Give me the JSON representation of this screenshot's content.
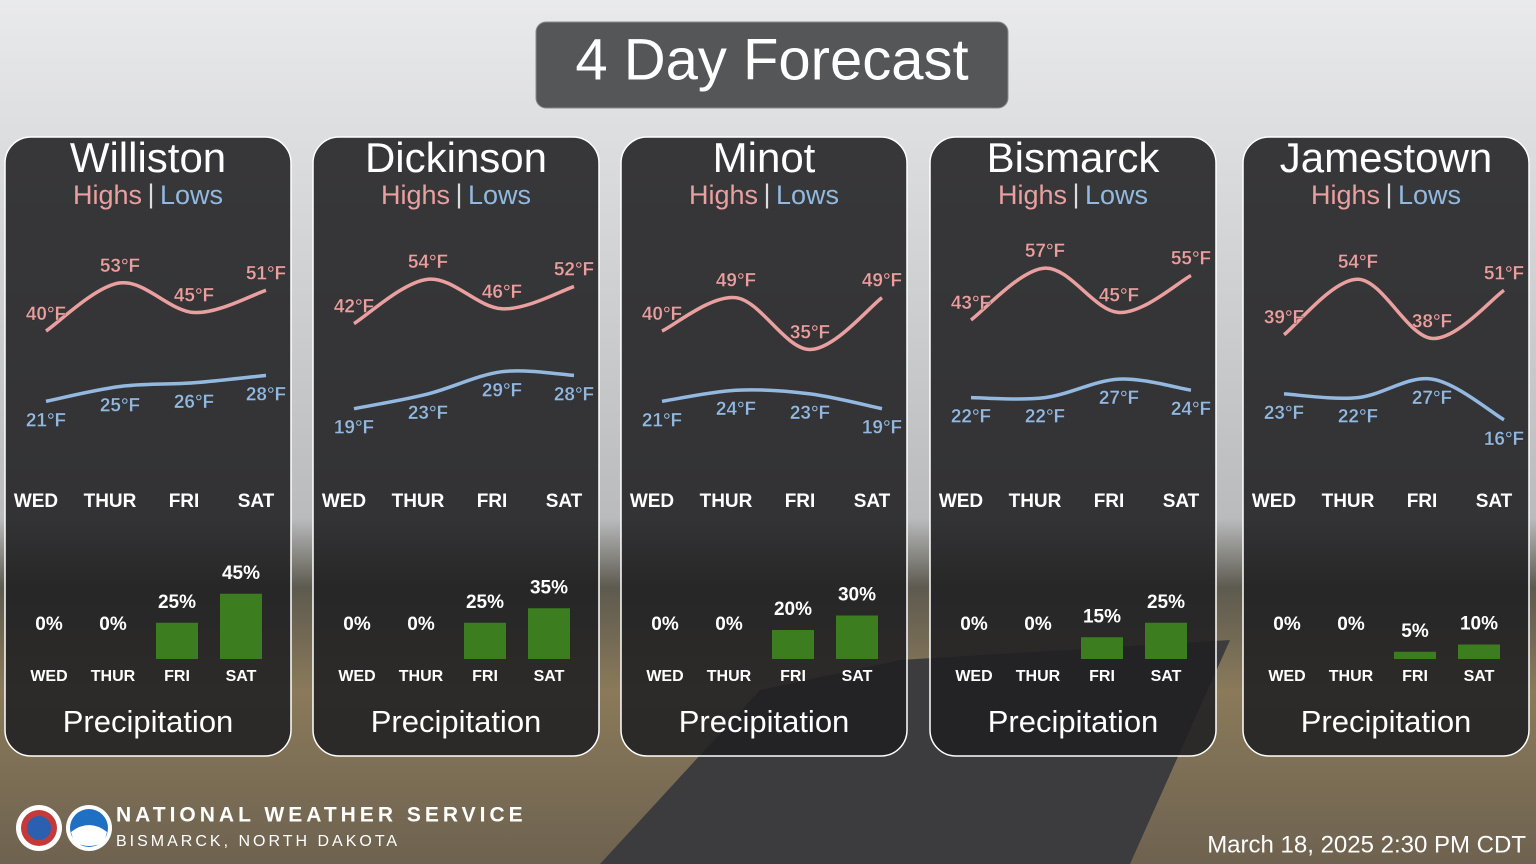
{
  "title": "4 Day Forecast",
  "days": [
    "WED",
    "THUR",
    "FRI",
    "SAT"
  ],
  "highs_label": "Highs",
  "separator": "|",
  "lows_label": "Lows",
  "precip_label": "Precipitation",
  "panels": [
    {
      "city": "Williston",
      "highs": {
        "values": [
          40,
          53,
          45,
          51
        ],
        "value_labels": [
          "40°F",
          "53°F",
          "45°F",
          "51°F"
        ]
      },
      "lows": {
        "values": [
          21,
          25,
          26,
          28
        ],
        "value_labels": [
          "21°F",
          "25°F",
          "26°F",
          "28°F"
        ]
      },
      "precip": {
        "values": [
          0,
          0,
          25,
          45
        ],
        "value_labels": [
          "0%",
          "0%",
          "25%",
          "45%"
        ]
      }
    },
    {
      "city": "Dickinson",
      "highs": {
        "values": [
          42,
          54,
          46,
          52
        ],
        "value_labels": [
          "42°F",
          "54°F",
          "46°F",
          "52°F"
        ]
      },
      "lows": {
        "values": [
          19,
          23,
          29,
          28
        ],
        "value_labels": [
          "19°F",
          "23°F",
          "29°F",
          "28°F"
        ]
      },
      "precip": {
        "values": [
          0,
          0,
          25,
          35
        ],
        "value_labels": [
          "0%",
          "0%",
          "25%",
          "35%"
        ]
      }
    },
    {
      "city": "Minot",
      "highs": {
        "values": [
          40,
          49,
          35,
          49
        ],
        "value_labels": [
          "40°F",
          "49°F",
          "35°F",
          "49°F"
        ]
      },
      "lows": {
        "values": [
          21,
          24,
          23,
          19
        ],
        "value_labels": [
          "21°F",
          "24°F",
          "23°F",
          "19°F"
        ]
      },
      "precip": {
        "values": [
          0,
          0,
          20,
          30
        ],
        "value_labels": [
          "0%",
          "0%",
          "20%",
          "30%"
        ]
      }
    },
    {
      "city": "Bismarck",
      "highs": {
        "values": [
          43,
          57,
          45,
          55
        ],
        "value_labels": [
          "43°F",
          "57°F",
          "45°F",
          "55°F"
        ]
      },
      "lows": {
        "values": [
          22,
          22,
          27,
          24
        ],
        "value_labels": [
          "22°F",
          "22°F",
          "27°F",
          "24°F"
        ]
      },
      "precip": {
        "values": [
          0,
          0,
          15,
          25
        ],
        "value_labels": [
          "0%",
          "0%",
          "15%",
          "25%"
        ]
      }
    },
    {
      "city": "Jamestown",
      "highs": {
        "values": [
          39,
          54,
          38,
          51
        ],
        "value_labels": [
          "39°F",
          "54°F",
          "38°F",
          "51°F"
        ]
      },
      "lows": {
        "values": [
          23,
          22,
          27,
          16
        ],
        "value_labels": [
          "23°F",
          "22°F",
          "27°F",
          "16°F"
        ]
      },
      "precip": {
        "values": [
          0,
          0,
          5,
          10
        ],
        "value_labels": [
          "0%",
          "0%",
          "5%",
          "10%"
        ]
      }
    }
  ],
  "footer": {
    "org": "NATIONAL WEATHER SERVICE",
    "office": "BISMARCK, NORTH DAKOTA",
    "timestamp": "March 18, 2025 2:30 PM CDT"
  }
}
